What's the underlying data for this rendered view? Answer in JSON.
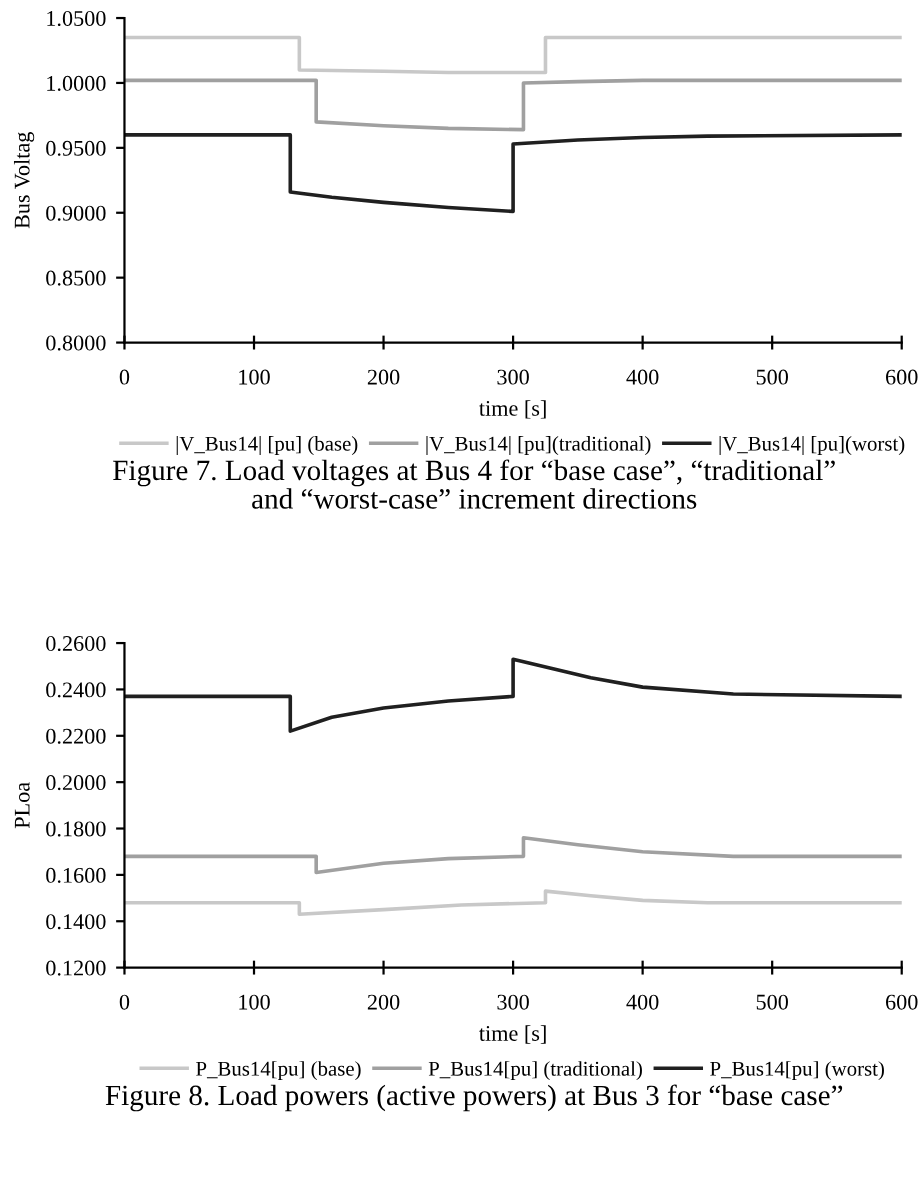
{
  "chart_data": [
    {
      "type": "line",
      "ylabel": "Bus Voltag",
      "xlabel": "time [s]",
      "xlim": [
        0,
        600
      ],
      "xticks": [
        0,
        100,
        200,
        300,
        400,
        500,
        600
      ],
      "ylim": [
        0.8,
        1.05
      ],
      "yticks": [
        {
          "value": 0.8,
          "label": "0.8000"
        },
        {
          "value": 0.85,
          "label": "0.8500"
        },
        {
          "value": 0.9,
          "label": "0.9000"
        },
        {
          "value": 0.95,
          "label": "0.9500"
        },
        {
          "value": 1.0,
          "label": "1.0000"
        },
        {
          "value": 1.05,
          "label": "1.0500"
        }
      ],
      "grid": false,
      "legend": "bottom",
      "marker": "none",
      "line_style": "solid",
      "series": [
        {
          "name": "|V_Bus14| [pu] (base)",
          "color": "#c8c8c8",
          "x": [
            0,
            135,
            135,
            200,
            250,
            325,
            325,
            400,
            600
          ],
          "values": [
            1.035,
            1.035,
            1.01,
            1.009,
            1.008,
            1.008,
            1.035,
            1.035,
            1.035
          ]
        },
        {
          "name": "|V_Bus14| [pu](traditional)",
          "color": "#a0a0a0",
          "x": [
            0,
            148,
            148,
            200,
            250,
            308,
            308,
            350,
            400,
            600
          ],
          "values": [
            1.002,
            1.002,
            0.97,
            0.967,
            0.965,
            0.964,
            1.0,
            1.001,
            1.002,
            1.002
          ]
        },
        {
          "name": "|V_Bus14| [pu](worst)",
          "color": "#202020",
          "x": [
            0,
            128,
            128,
            160,
            200,
            250,
            300,
            300,
            350,
            400,
            450,
            600
          ],
          "values": [
            0.96,
            0.96,
            0.916,
            0.912,
            0.908,
            0.904,
            0.901,
            0.953,
            0.956,
            0.958,
            0.959,
            0.96
          ]
        }
      ],
      "annotations": [
        "Figure 7. Load voltages at Bus 4 for “base case”, “traditional”\nand “worst-case” increment directions"
      ]
    },
    {
      "type": "line",
      "ylabel": "PLoa",
      "xlabel": "time [s]",
      "xlim": [
        0,
        600
      ],
      "xticks": [
        0,
        100,
        200,
        300,
        400,
        500,
        600
      ],
      "ylim": [
        0.12,
        0.26
      ],
      "yticks": [
        {
          "value": 0.12,
          "label": "0.1200"
        },
        {
          "value": 0.14,
          "label": "0.1400"
        },
        {
          "value": 0.16,
          "label": "0.1600"
        },
        {
          "value": 0.18,
          "label": "0.1800"
        },
        {
          "value": 0.2,
          "label": "0.2000"
        },
        {
          "value": 0.22,
          "label": "0.2200"
        },
        {
          "value": 0.24,
          "label": "0.2400"
        },
        {
          "value": 0.26,
          "label": "0.2600"
        }
      ],
      "grid": false,
      "legend": "bottom",
      "marker": "none",
      "line_style": "solid",
      "series": [
        {
          "name": "P_Bus14[pu] (base)",
          "color": "#c8c8c8",
          "x": [
            0,
            135,
            135,
            200,
            260,
            325,
            325,
            360,
            400,
            450,
            600
          ],
          "values": [
            0.148,
            0.148,
            0.143,
            0.145,
            0.147,
            0.148,
            0.153,
            0.151,
            0.149,
            0.148,
            0.148
          ]
        },
        {
          "name": "P_Bus14[pu] (traditional)",
          "color": "#a0a0a0",
          "x": [
            0,
            148,
            148,
            200,
            250,
            308,
            308,
            350,
            400,
            470,
            600
          ],
          "values": [
            0.168,
            0.168,
            0.161,
            0.165,
            0.167,
            0.168,
            0.176,
            0.173,
            0.17,
            0.168,
            0.168
          ]
        },
        {
          "name": "P_Bus14[pu] (worst)",
          "color": "#202020",
          "x": [
            0,
            128,
            128,
            160,
            200,
            250,
            300,
            300,
            330,
            360,
            400,
            470,
            600
          ],
          "values": [
            0.237,
            0.237,
            0.222,
            0.228,
            0.232,
            0.235,
            0.237,
            0.253,
            0.249,
            0.245,
            0.241,
            0.238,
            0.237
          ]
        }
      ],
      "annotations": [
        "Figure 8. Load powers (active powers) at Bus 3 for “base case”"
      ]
    }
  ]
}
